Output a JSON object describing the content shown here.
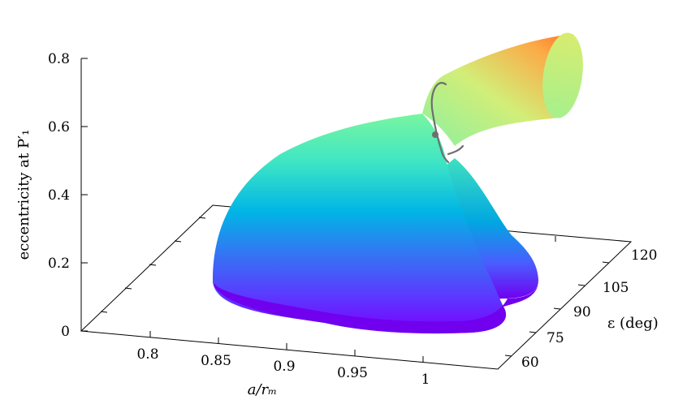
{
  "chart_data": {
    "type": "surface",
    "zlabel": "eccentricity at P′₁",
    "xlabel": "a/rₘ",
    "ylabel": "ε (deg)",
    "z_ticks": [
      "0",
      "0.2",
      "0.4",
      "0.6",
      "0.8"
    ],
    "x_ticks": [
      "0.8",
      "0.85",
      "0.9",
      "0.95",
      "1"
    ],
    "y_ticks": [
      "60",
      "75",
      "90",
      "105",
      "120"
    ],
    "zlim": [
      0,
      0.8
    ],
    "xlim": [
      0.76,
      1.03
    ],
    "ylim": [
      55,
      125
    ],
    "colormap": "rainbow (purple-blue-cyan-green-yellow-orange)",
    "colors": {
      "low": "#7a00ff",
      "mid_low": "#00a8e8",
      "mid": "#3ef0b0",
      "mid_high": "#c8f07a",
      "high": "#ff6a1e",
      "curve": "#6e6e6e"
    },
    "marker_point": {
      "x": 0.95,
      "y": 95,
      "z": 0.58
    },
    "grid": false
  }
}
